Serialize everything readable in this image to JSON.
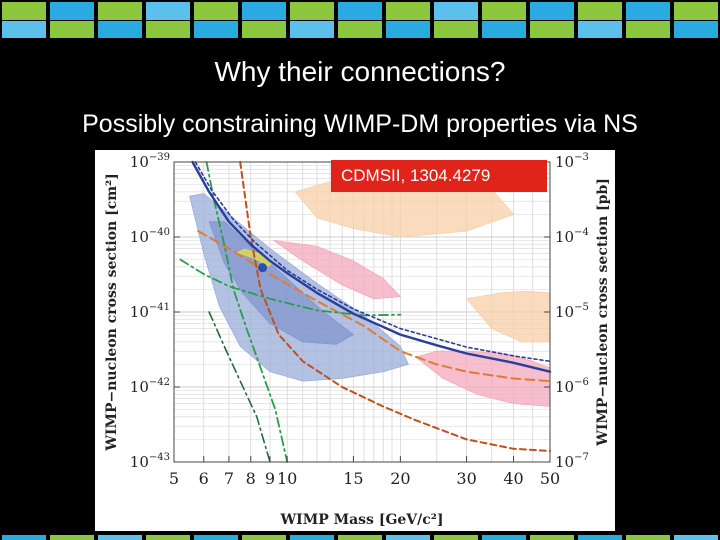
{
  "slide": {
    "title": "Why their connections?",
    "subtitle": "Possibly constraining WIMP-DM properties via NS",
    "badge": "CDMSII, 1304.4279"
  },
  "colors": {
    "background": "#000000",
    "tile_green": "#8cc63f",
    "tile_blue": "#29abe2",
    "tile_lightblue": "#5bc0eb",
    "badge_red": "#e0241b"
  },
  "chart_data": {
    "type": "line",
    "xlabel": "WIMP Mass [GeV/c²]",
    "ylabel_left": "WIMP−nucleon cross section [cm²]",
    "ylabel_right": "WIMP−nucleon cross section [pb]",
    "x_scale": "log",
    "y_scale": "log",
    "xlim": [
      5,
      50
    ],
    "ylim": [
      1e-43,
      1e-39
    ],
    "grid": true,
    "x_ticks": [
      5,
      6,
      7,
      8,
      9,
      10,
      15,
      20,
      30,
      40,
      50
    ],
    "x_tick_labels": [
      "5",
      "6",
      "7",
      "8",
      "9",
      "10",
      "15",
      "20",
      "30",
      "40",
      "50"
    ],
    "y_ticks_left": [
      {
        "value": 1e-39,
        "mant": "10",
        "exp": "−39"
      },
      {
        "value": 1e-40,
        "mant": "10",
        "exp": "−40"
      },
      {
        "value": 1e-41,
        "mant": "10",
        "exp": "−41"
      },
      {
        "value": 1e-42,
        "mant": "10",
        "exp": "−42"
      },
      {
        "value": 1e-43,
        "mant": "10",
        "exp": "−43"
      }
    ],
    "y_ticks_right": [
      {
        "value": 1e-39,
        "mant": "10",
        "exp": "−3"
      },
      {
        "value": 1e-40,
        "mant": "10",
        "exp": "−4"
      },
      {
        "value": 1e-41,
        "mant": "10",
        "exp": "−5"
      },
      {
        "value": 1e-42,
        "mant": "10",
        "exp": "−6"
      },
      {
        "value": 1e-43,
        "mant": "10",
        "exp": "−7"
      }
    ],
    "regions": [
      {
        "color": "#f9cfa8",
        "points": [
          [
            10.5,
            4e-40
          ],
          [
            12,
            1.8e-40
          ],
          [
            15,
            1.3e-40
          ],
          [
            20,
            1e-40
          ],
          [
            30,
            1.2e-40
          ],
          [
            40,
            2e-40
          ],
          [
            35,
            4.3e-40
          ],
          [
            25,
            5.5e-40
          ],
          [
            18,
            5.8e-40
          ],
          [
            13,
            5.5e-40
          ]
        ]
      },
      {
        "color": "#f9cfa8",
        "points": [
          [
            30,
            1.5e-41
          ],
          [
            35,
            6e-42
          ],
          [
            42,
            4e-42
          ],
          [
            50,
            4e-42
          ],
          [
            50,
            1.8e-41
          ],
          [
            43,
            1.9e-41
          ],
          [
            37,
            1.8e-41
          ]
        ]
      },
      {
        "color": "#f4a8bc",
        "points": [
          [
            9.2,
            9e-41
          ],
          [
            11,
            4.8e-41
          ],
          [
            14,
            2.3e-41
          ],
          [
            17,
            1.5e-41
          ],
          [
            20,
            1.6e-41
          ],
          [
            18,
            2.8e-41
          ],
          [
            15,
            4.8e-41
          ],
          [
            12,
            7.5e-41
          ]
        ]
      },
      {
        "color": "#f4a8bc",
        "points": [
          [
            22,
            2.5e-42
          ],
          [
            26,
            1.3e-42
          ],
          [
            32,
            8e-43
          ],
          [
            40,
            6e-43
          ],
          [
            50,
            5.5e-43
          ],
          [
            50,
            1.8e-42
          ],
          [
            45,
            2.2e-42
          ],
          [
            38,
            2.8e-42
          ],
          [
            30,
            3e-42
          ],
          [
            25,
            3e-42
          ]
        ]
      },
      {
        "color": "#9aaed9",
        "points": [
          [
            5.5,
            3.5e-40
          ],
          [
            6,
            6e-41
          ],
          [
            6.6,
            1.2e-41
          ],
          [
            7.5,
            3.5e-42
          ],
          [
            9,
            1.6e-42
          ],
          [
            11,
            1.2e-42
          ],
          [
            14,
            1.3e-42
          ],
          [
            18,
            1.6e-42
          ],
          [
            21,
            2e-42
          ],
          [
            20,
            3.5e-42
          ],
          [
            16,
            9e-42
          ],
          [
            12,
            2.4e-41
          ],
          [
            9,
            7e-41
          ],
          [
            7,
            2e-40
          ],
          [
            6,
            3.8e-40
          ]
        ]
      },
      {
        "color": "#8196cc",
        "points": [
          [
            6.2,
            1.6e-40
          ],
          [
            6.8,
            4.5e-41
          ],
          [
            7.6,
            1.8e-41
          ],
          [
            9,
            7e-42
          ],
          [
            11,
            4e-42
          ],
          [
            13.5,
            3.7e-42
          ],
          [
            15,
            5e-42
          ],
          [
            12.5,
            1e-41
          ],
          [
            10,
            2.8e-41
          ],
          [
            8,
            7.5e-41
          ],
          [
            6.8,
            1.6e-40
          ]
        ]
      },
      {
        "color": "#e6e041",
        "points": [
          [
            7.4,
            6.2e-41
          ],
          [
            8.2,
            5.2e-41
          ],
          [
            8.9,
            4.1e-41
          ],
          [
            9.2,
            4.6e-41
          ],
          [
            8.6,
            5.8e-41
          ],
          [
            7.7,
            6.9e-41
          ]
        ]
      }
    ],
    "series": [
      {
        "color": "#c0501c",
        "dash": "6,4",
        "width": 2.0,
        "points": [
          [
            7.5,
            1e-39
          ],
          [
            8,
            1e-40
          ],
          [
            8.5,
            2e-41
          ],
          [
            9.5,
            5e-42
          ],
          [
            11,
            2.2e-42
          ],
          [
            14,
            1e-42
          ],
          [
            18,
            5.5e-43
          ],
          [
            22,
            3.6e-43
          ],
          [
            30,
            2e-43
          ],
          [
            40,
            1.5e-43
          ],
          [
            50,
            1.4e-43
          ]
        ]
      },
      {
        "color": "#e07a35",
        "dash": "9,5",
        "width": 2.0,
        "points": [
          [
            5.8,
            1.2e-40
          ],
          [
            7,
            7e-41
          ],
          [
            9,
            3.2e-41
          ],
          [
            12,
            1.4e-41
          ],
          [
            16,
            6.5e-42
          ],
          [
            20,
            3e-42
          ],
          [
            25,
            2e-42
          ],
          [
            30,
            1.6e-42
          ],
          [
            40,
            1.3e-42
          ],
          [
            50,
            1.2e-42
          ]
        ]
      },
      {
        "color": "#2a9d4b",
        "dash": "9,4,2,4",
        "width": 1.8,
        "points": [
          [
            5.2,
            5e-41
          ],
          [
            6,
            3.2e-41
          ],
          [
            7,
            2.2e-41
          ],
          [
            9,
            1.5e-41
          ],
          [
            12,
            1.05e-41
          ],
          [
            16,
            9e-42
          ],
          [
            20,
            9.2e-42
          ]
        ]
      },
      {
        "color": "#2a9d4b",
        "dash": "9,4,2,4",
        "width": 1.8,
        "points": [
          [
            6.1,
            1e-39
          ],
          [
            6.4,
            3e-40
          ],
          [
            6.8,
            8e-41
          ],
          [
            7.2,
            2e-41
          ],
          [
            7.8,
            6e-42
          ],
          [
            8.5,
            1.8e-42
          ],
          [
            9.3,
            5e-43
          ],
          [
            10,
            1e-43
          ]
        ]
      },
      {
        "color": "#246b3a",
        "dash": "9,4,2,4",
        "width": 1.6,
        "points": [
          [
            6.2,
            1e-41
          ],
          [
            6.8,
            3.5e-42
          ],
          [
            7.5,
            1.2e-42
          ],
          [
            8.3,
            4e-43
          ],
          [
            9,
            1e-43
          ]
        ]
      },
      {
        "color": "#2c3e9c",
        "dash": "",
        "width": 2.4,
        "points": [
          [
            5.6,
            1e-39
          ],
          [
            6.2,
            4e-40
          ],
          [
            7,
            1.6e-40
          ],
          [
            8,
            8e-41
          ],
          [
            9,
            4.8e-41
          ],
          [
            10,
            3.3e-41
          ],
          [
            12,
            1.8e-41
          ],
          [
            15,
            9.5e-42
          ],
          [
            20,
            5e-42
          ],
          [
            25,
            3.6e-42
          ],
          [
            30,
            2.8e-42
          ],
          [
            40,
            2.1e-42
          ],
          [
            50,
            1.6e-42
          ]
        ]
      },
      {
        "color": "#2c3e9c",
        "dash": "3,3",
        "width": 1.6,
        "points": [
          [
            5.7,
            1e-39
          ],
          [
            6.3,
            4.2e-40
          ],
          [
            7.2,
            1.7e-40
          ],
          [
            8.2,
            8.5e-41
          ],
          [
            10,
            3.6e-41
          ],
          [
            12,
            2e-41
          ],
          [
            15,
            1.1e-41
          ],
          [
            20,
            6e-42
          ],
          [
            30,
            3.4e-42
          ],
          [
            40,
            2.6e-42
          ],
          [
            50,
            2.2e-42
          ]
        ]
      }
    ],
    "markers": [
      {
        "x": 8.6,
        "y": 3.9e-41,
        "color": "#2c4fb0"
      }
    ]
  }
}
